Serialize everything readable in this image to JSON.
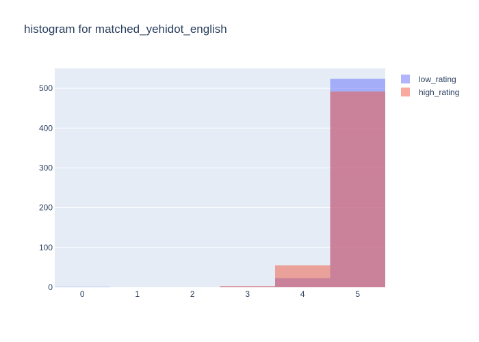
{
  "chart_data": {
    "type": "bar",
    "title": "histogram for matched_yehidot_english",
    "categories": [
      "0",
      "1",
      "2",
      "3",
      "4",
      "5"
    ],
    "series": [
      {
        "name": "low_rating",
        "values": [
          1,
          0,
          0,
          2,
          23,
          524
        ],
        "color": "#636efa"
      },
      {
        "name": "high_rating",
        "values": [
          0,
          0,
          0,
          3,
          55,
          492
        ],
        "color": "#ef553b"
      }
    ],
    "ylim": [
      0,
      550
    ],
    "yticks": [
      0,
      100,
      200,
      300,
      400,
      500
    ],
    "grid": true,
    "barmode": "overlay",
    "opacity": 0.5,
    "legend_position": "top-right"
  }
}
